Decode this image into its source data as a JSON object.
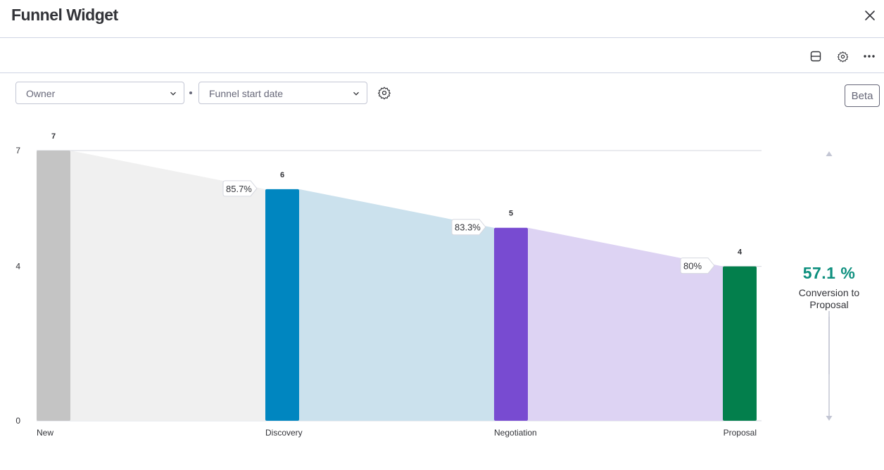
{
  "header": {
    "title": "Funnel Widget"
  },
  "filters": {
    "owner_label": "Owner",
    "start_date_label": "Funnel start date",
    "beta_label": "Beta"
  },
  "conversion": {
    "value": "57.1 %",
    "label": "Conversion to Proposal",
    "color": "#0d8f7e"
  },
  "chart_data": {
    "type": "bar",
    "subtype": "funnel",
    "categories": [
      "New",
      "Discovery",
      "Negotiation",
      "Proposal"
    ],
    "values": [
      7,
      6,
      5,
      4
    ],
    "colors": [
      "#c4c4c4",
      "#0086c0",
      "#784bd1",
      "#037f4c"
    ],
    "band_colors": [
      "#f0f0f0",
      "#cbe1ed",
      "#ddd3f3"
    ],
    "step_rates": [
      "85.7%",
      "83.3%",
      "80%"
    ],
    "ylim": [
      0,
      7
    ],
    "y_ticks": [
      0,
      4,
      7
    ],
    "grid": true,
    "title": "",
    "xlabel": "",
    "ylabel": ""
  }
}
